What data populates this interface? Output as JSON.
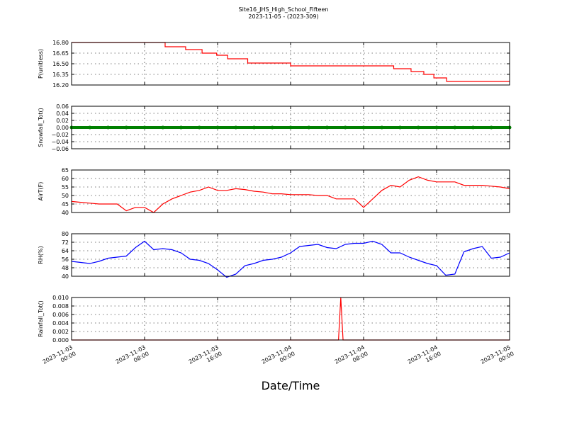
{
  "title": "Site16_JHS_High_School_Fifteen",
  "subtitle": "2023-11-05 - (2023-309)",
  "x_label": "Date/Time",
  "chart_data": [
    {
      "type": "line",
      "y_label": "P(unitless)",
      "color": "#ff0000",
      "drawstyle": "steps-post",
      "x": [
        0,
        10.25,
        12.5,
        14.3,
        15.9,
        17.1,
        19.3,
        24,
        35.3,
        37.2,
        38.6,
        39.7,
        41.1,
        48
      ],
      "values": [
        16.8,
        16.74,
        16.7,
        16.65,
        16.62,
        16.57,
        16.51,
        16.47,
        16.43,
        16.39,
        16.35,
        16.3,
        16.25,
        16.25
      ],
      "ylim": [
        16.2,
        16.8
      ],
      "yticks": [
        {
          "value": 16.2,
          "label": "16.20"
        },
        {
          "value": 16.35,
          "label": "16.35"
        },
        {
          "value": 16.5,
          "label": "16.50"
        },
        {
          "value": 16.65,
          "label": "16.65"
        },
        {
          "value": 16.8,
          "label": "16.80"
        }
      ]
    },
    {
      "type": "line",
      "y_label": "Snowfall_Tot()",
      "color": "#008000",
      "marker": "o",
      "x": [
        0,
        2,
        4,
        6,
        8,
        10,
        12,
        14,
        16,
        18,
        20,
        22,
        24,
        26,
        28,
        30,
        32,
        34,
        36,
        38,
        40,
        42,
        44,
        46,
        48
      ],
      "values": [
        0,
        0,
        0,
        0,
        0,
        0,
        0,
        0,
        0,
        0,
        0,
        0,
        0,
        0,
        0,
        0,
        0,
        0,
        0,
        0,
        0,
        0,
        0,
        0,
        0
      ],
      "ylim": [
        -0.06,
        0.06
      ],
      "yticks": [
        {
          "value": -0.06,
          "label": "−0.06"
        },
        {
          "value": -0.04,
          "label": "−0.04"
        },
        {
          "value": -0.02,
          "label": "−0.02"
        },
        {
          "value": 0,
          "label": "0.00"
        },
        {
          "value": 0.02,
          "label": "0.02"
        },
        {
          "value": 0.04,
          "label": "0.04"
        },
        {
          "value": 0.06,
          "label": "0.06"
        }
      ]
    },
    {
      "type": "line",
      "y_label": "AirT(F)",
      "color": "#ff0000",
      "x": [
        0,
        1,
        2,
        3,
        4,
        5,
        6,
        7,
        8,
        9,
        10,
        11,
        12,
        13,
        14,
        15,
        16,
        17,
        18,
        19,
        20,
        21,
        22,
        23,
        24,
        25,
        26,
        27,
        28,
        29,
        30,
        31,
        32,
        33,
        34,
        35,
        36,
        37,
        38,
        39,
        40,
        41,
        42,
        43,
        44,
        45,
        46,
        47,
        48
      ],
      "values": [
        46.5,
        46,
        45.5,
        45,
        45,
        45,
        41,
        43,
        43,
        40,
        45,
        48,
        50,
        52,
        53,
        55,
        53,
        53,
        54,
        53.5,
        52.5,
        52,
        51,
        51,
        50.5,
        50.5,
        50.5,
        50,
        50,
        48,
        48,
        48,
        43,
        48,
        53,
        56,
        55,
        59,
        61,
        59,
        58,
        58,
        58,
        56,
        56,
        56,
        55.5,
        55,
        54
      ],
      "ylim": [
        40,
        65
      ],
      "yticks": [
        40,
        45,
        50,
        55,
        60,
        65
      ]
    },
    {
      "type": "line",
      "y_label": "RH(%)",
      "color": "#0000ff",
      "x": [
        0,
        1,
        2,
        3,
        4,
        5,
        6,
        7,
        8,
        9,
        10,
        11,
        12,
        13,
        14,
        15,
        16,
        17,
        18,
        19,
        20,
        21,
        22,
        23,
        24,
        25,
        26,
        27,
        28,
        29,
        30,
        31,
        32,
        33,
        34,
        35,
        36,
        37,
        38,
        39,
        40,
        41,
        42,
        43,
        44,
        45,
        46,
        47,
        48
      ],
      "values": [
        54,
        53,
        52,
        54,
        57,
        58,
        59,
        67,
        73,
        65,
        66,
        65,
        62,
        56,
        55,
        52,
        46,
        39,
        42,
        50,
        52,
        55,
        56,
        58,
        62,
        68,
        69,
        70,
        67,
        66,
        70,
        71,
        71,
        73,
        70,
        62,
        62,
        58,
        55,
        52,
        50,
        41,
        42,
        63,
        66,
        68,
        57,
        58,
        62
      ],
      "ylim": [
        40,
        80
      ],
      "yticks": [
        40,
        48,
        56,
        64,
        72,
        80
      ]
    },
    {
      "type": "line",
      "y_label": "Rainfall_Tot()",
      "color": "#ff0000",
      "x": [
        0,
        29.25,
        29.5,
        29.75,
        48
      ],
      "values": [
        0,
        0,
        0.01,
        0,
        0
      ],
      "ylim": [
        0,
        0.01
      ],
      "yticks": [
        {
          "value": 0,
          "label": "0.000"
        },
        {
          "value": 0.002,
          "label": "0.002"
        },
        {
          "value": 0.004,
          "label": "0.004"
        },
        {
          "value": 0.006,
          "label": "0.006"
        },
        {
          "value": 0.008,
          "label": "0.008"
        },
        {
          "value": 0.01,
          "label": "0.010"
        }
      ],
      "xlim": [
        0,
        48
      ],
      "xticks": [
        {
          "value": 0,
          "label": "2023-11-03\n00:00"
        },
        {
          "value": 8,
          "label": "2023-11-03\n08:00"
        },
        {
          "value": 16,
          "label": "2023-11-03\n16:00"
        },
        {
          "value": 24,
          "label": "2023-11-04\n00:00"
        },
        {
          "value": 32,
          "label": "2023-11-04\n08:00"
        },
        {
          "value": 40,
          "label": "2023-11-04\n16:00"
        },
        {
          "value": 48,
          "label": "2023-11-05\n00:00"
        }
      ]
    }
  ]
}
